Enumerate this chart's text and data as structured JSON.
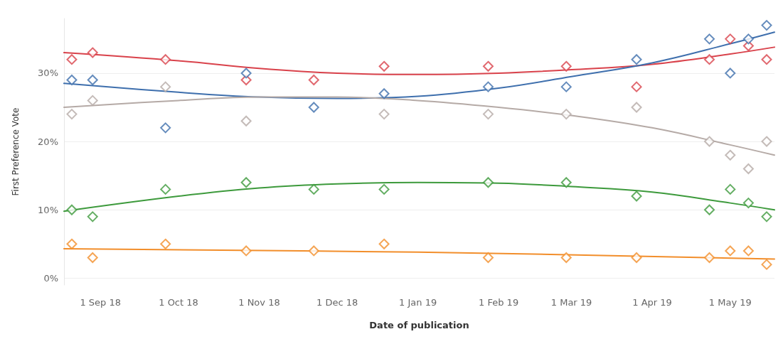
{
  "chart_data": {
    "type": "scatter",
    "xlabel": "Date of publication",
    "ylabel": "First Preference Vote",
    "x": [
      "2018-08-21",
      "2018-08-29",
      "2018-09-26",
      "2018-10-27",
      "2018-11-22",
      "2018-12-19",
      "2019-01-28",
      "2019-02-27",
      "2019-03-26",
      "2019-04-23",
      "2019-05-01",
      "2019-05-08",
      "2019-05-15"
    ],
    "series": [
      {
        "type": "scatter",
        "marker": "diamond",
        "color": "#d9424b",
        "values": [
          32,
          33,
          32,
          29,
          29,
          31,
          31,
          31,
          28,
          32,
          35,
          34,
          32
        ]
      },
      {
        "type": "scatter",
        "marker": "diamond",
        "color": "#3e6fad",
        "values": [
          29,
          29,
          22,
          30,
          25,
          27,
          28,
          28,
          32,
          35,
          30,
          35,
          37
        ]
      },
      {
        "type": "scatter",
        "marker": "diamond",
        "color": "#b5aaa6",
        "values": [
          24,
          26,
          28,
          23,
          null,
          24,
          24,
          24,
          25,
          20,
          18,
          16,
          20
        ]
      },
      {
        "type": "scatter",
        "marker": "diamond",
        "color": "#3d9a3c",
        "values": [
          10,
          9,
          13,
          14,
          13,
          13,
          14,
          14,
          12,
          10,
          13,
          11,
          9
        ]
      },
      {
        "type": "scatter",
        "marker": "diamond",
        "color": "#f28e2b",
        "values": [
          5,
          3,
          5,
          4,
          4,
          5,
          3,
          3,
          3,
          3,
          4,
          4,
          2
        ]
      },
      {
        "type": "line",
        "marker": "none",
        "line_style": "solid",
        "color": "#d9424b",
        "x": [
          "2018-08-18",
          "2018-10-01",
          "2018-11-01",
          "2018-12-01",
          "2019-01-01",
          "2019-02-01",
          "2019-03-01",
          "2019-04-01",
          "2019-05-01",
          "2019-05-18"
        ],
        "values": [
          33,
          31.8,
          30.7,
          30,
          29.8,
          30,
          30.5,
          31.3,
          32.8,
          33.8
        ]
      },
      {
        "type": "line",
        "marker": "none",
        "line_style": "solid",
        "color": "#3e6fad",
        "x": [
          "2018-08-18",
          "2018-10-01",
          "2018-11-01",
          "2018-12-01",
          "2019-01-01",
          "2019-02-01",
          "2019-03-01",
          "2019-04-01",
          "2019-05-01",
          "2019-05-18"
        ],
        "values": [
          28.5,
          27.2,
          26.5,
          26.3,
          26.6,
          27.8,
          29.5,
          31.5,
          34.3,
          36
        ]
      },
      {
        "type": "line",
        "marker": "none",
        "line_style": "solid",
        "color": "#b5aaa6",
        "x": [
          "2018-08-18",
          "2018-10-01",
          "2018-11-01",
          "2018-12-01",
          "2019-01-01",
          "2019-02-01",
          "2019-03-01",
          "2019-04-01",
          "2019-05-01",
          "2019-05-18"
        ],
        "values": [
          25,
          26,
          26.5,
          26.5,
          26,
          25,
          23.8,
          22,
          19.5,
          18
        ]
      },
      {
        "type": "line",
        "marker": "none",
        "line_style": "solid",
        "color": "#3d9a3c",
        "x": [
          "2018-08-18",
          "2018-10-01",
          "2018-11-01",
          "2018-12-01",
          "2019-01-01",
          "2019-02-01",
          "2019-03-01",
          "2019-04-01",
          "2019-05-01",
          "2019-05-18"
        ],
        "values": [
          9.8,
          12,
          13.2,
          13.8,
          14,
          13.9,
          13.4,
          12.6,
          11,
          10
        ]
      },
      {
        "type": "line",
        "marker": "none",
        "line_style": "solid",
        "color": "#f28e2b",
        "x": [
          "2018-08-18",
          "2019-01-01",
          "2019-05-18"
        ],
        "values": [
          4.3,
          3.8,
          2.8
        ]
      }
    ],
    "xlim": [
      "2018-08-18",
      "2019-05-18"
    ],
    "xticks": [
      {
        "value": "2018-09-01",
        "label": "1 Sep 18"
      },
      {
        "value": "2018-10-01",
        "label": "1 Oct 18"
      },
      {
        "value": "2018-11-01",
        "label": "1 Nov 18"
      },
      {
        "value": "2018-12-01",
        "label": "1 Dec 18"
      },
      {
        "value": "2019-01-01",
        "label": "1 Jan 19"
      },
      {
        "value": "2019-02-01",
        "label": "1 Feb 19"
      },
      {
        "value": "2019-03-01",
        "label": "1 Mar 19"
      },
      {
        "value": "2019-04-01",
        "label": "1 Apr 19"
      },
      {
        "value": "2019-05-01",
        "label": "1 May 19"
      }
    ],
    "ylim": [
      -1,
      38
    ],
    "yticks": [
      {
        "value": 0,
        "label": "0%"
      },
      {
        "value": 10,
        "label": "10%"
      },
      {
        "value": 20,
        "label": "20%"
      },
      {
        "value": 30,
        "label": "30%"
      }
    ],
    "grid": "y"
  }
}
